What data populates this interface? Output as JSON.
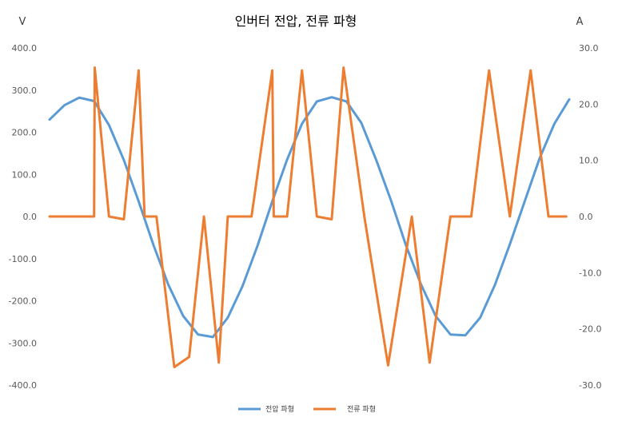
{
  "chart_data": {
    "type": "line",
    "title": "인버터 전압, 전류 파형",
    "y_left_unit": "V",
    "y_right_unit": "A",
    "y_left_ticks": [
      "400.0",
      "300.0",
      "200.0",
      "100.0",
      "0.0",
      "-100.0",
      "-200.0",
      "-300.0",
      "-400.0"
    ],
    "y_right_ticks": [
      "30.0",
      "20.0",
      "10.0",
      "0.0",
      "-10.0",
      "-20.0",
      "-30.0"
    ],
    "y_left_range": [
      -400,
      400
    ],
    "y_right_range": [
      -30,
      30
    ],
    "grid": false,
    "legend_position": "bottom",
    "x_range": [
      0,
      1.75
    ],
    "series": [
      {
        "name": "전압 파형",
        "axis": "left",
        "color": "#5B9BD5",
        "x": [
          0,
          0.05,
          0.1,
          0.15,
          0.2,
          0.25,
          0.3,
          0.35,
          0.4,
          0.45,
          0.5,
          0.55,
          0.6,
          0.65,
          0.7,
          0.75,
          0.8,
          0.85,
          0.9,
          0.95,
          1.0,
          1.05,
          1.1,
          1.15,
          1.2,
          1.25,
          1.3,
          1.35,
          1.4,
          1.45,
          1.5,
          1.55,
          1.6,
          1.65,
          1.7,
          1.75
        ],
        "y": [
          230,
          264,
          282,
          274,
          217,
          134,
          36,
          -68,
          -162,
          -236,
          -280,
          -286,
          -240,
          -165,
          -70,
          36,
          135,
          220,
          273,
          283,
          273,
          222,
          134,
          38,
          -68,
          -160,
          -236,
          -280,
          -282,
          -240,
          -162,
          -66,
          36,
          138,
          220,
          278
        ]
      },
      {
        "name": "전류 파형",
        "axis": "right",
        "color": "#ED7D31",
        "x": [
          0,
          0.01,
          0.15,
          0.152,
          0.2,
          0.25,
          0.3,
          0.32,
          0.322,
          0.36,
          0.42,
          0.47,
          0.52,
          0.57,
          0.6,
          0.61,
          0.65,
          0.68,
          0.75,
          0.755,
          0.8,
          0.85,
          0.9,
          0.95,
          0.99,
          1.06,
          1.14,
          1.22,
          1.28,
          1.35,
          1.42,
          1.48,
          1.55,
          1.62,
          1.68,
          1.74
        ],
        "y": [
          0,
          0,
          0,
          26.5,
          0,
          -0.5,
          26,
          0,
          0,
          0,
          -26.8,
          -25,
          0,
          -26,
          0,
          0,
          0,
          0,
          26,
          0,
          0,
          26,
          0,
          -0.5,
          26.5,
          0,
          -26.5,
          0,
          -26,
          0,
          0,
          26,
          0,
          26,
          0,
          0
        ]
      }
    ]
  }
}
